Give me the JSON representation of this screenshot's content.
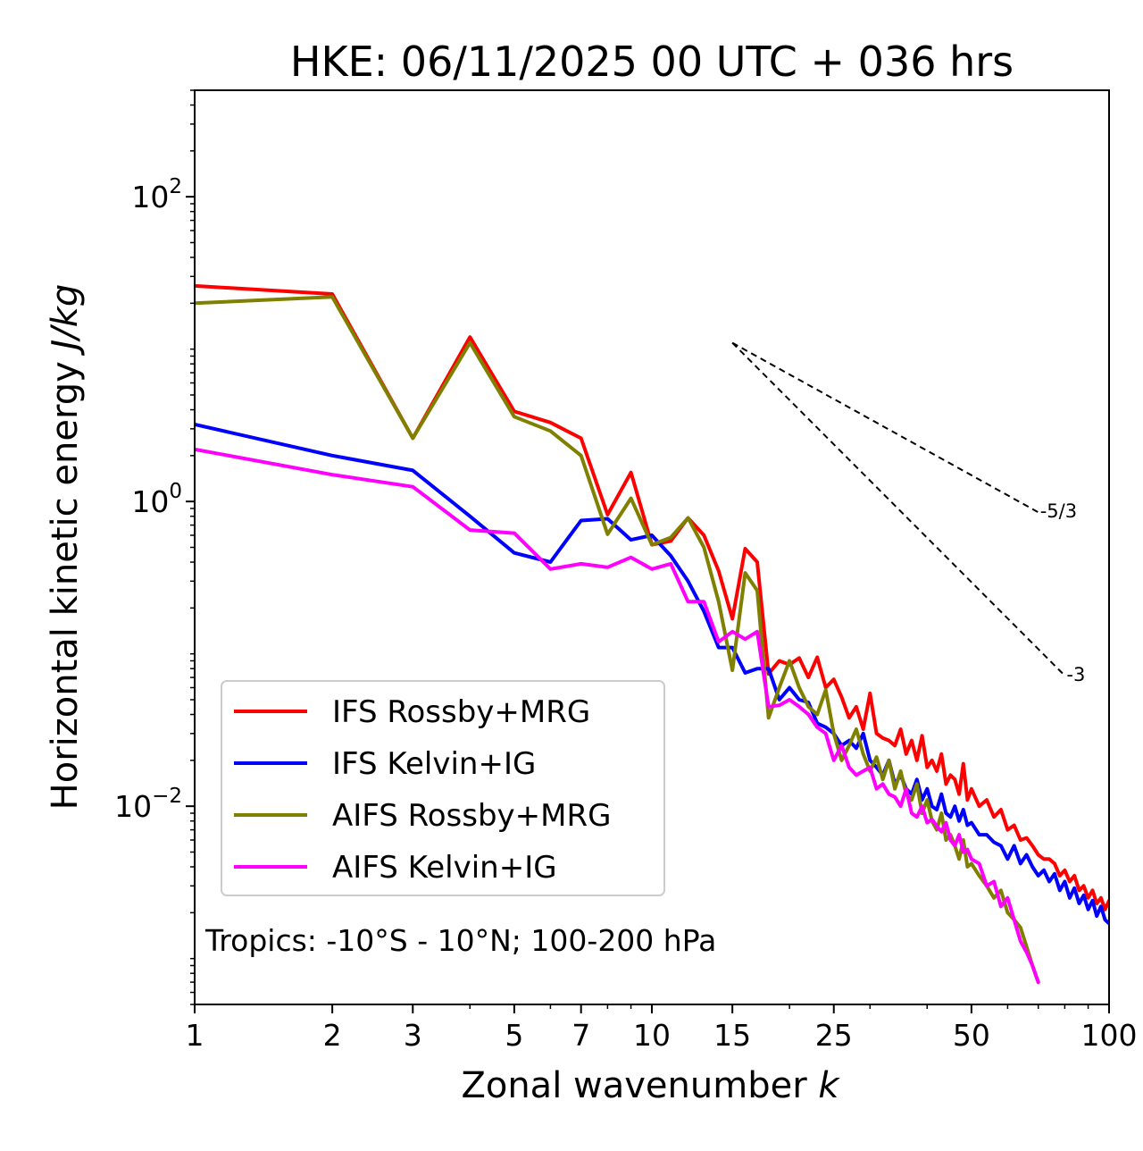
{
  "chart_data": {
    "type": "line",
    "title": "HKE: 06/11/2025 00 UTC + 036 hrs",
    "xlabel": "Zonal wavenumber",
    "xlabel_var": "k",
    "ylabel": "Horizontal kinetic energy",
    "ylabel_units": "J/kg",
    "xscale": "log",
    "yscale": "log",
    "xlim": [
      1,
      100
    ],
    "ylim": [
      0.0005,
      500
    ],
    "xticks": [
      1,
      2,
      3,
      5,
      7,
      10,
      15,
      25,
      50,
      100
    ],
    "xtick_labels": [
      "1",
      "2",
      "3",
      "5",
      "7",
      "10",
      "15",
      "25",
      "50",
      "100"
    ],
    "yticks": [
      {
        "value": 100,
        "base": "10",
        "exp": "2"
      },
      {
        "value": 1,
        "base": "10",
        "exp": "0"
      },
      {
        "value": 0.01,
        "base": "10",
        "exp": "−2"
      }
    ],
    "annotation": "Tropics: -10°S - 10°N; 100-200 hPa",
    "legend_location": "lower-left",
    "reference_lines": [
      {
        "label": "-5/3",
        "slope": -1.6667,
        "x": [
          15,
          70
        ],
        "y": [
          11,
          0.85
        ]
      },
      {
        "label": "-3",
        "slope": -3,
        "x": [
          15,
          80
        ],
        "y": [
          11,
          0.072
        ]
      }
    ],
    "series": [
      {
        "name": "IFS Rossby+MRG",
        "color": "#ff0000",
        "x": [
          1,
          2,
          3,
          4,
          5,
          6,
          7,
          8,
          9,
          10,
          11,
          12,
          13,
          14,
          15,
          16,
          17,
          18,
          19,
          20,
          21,
          22,
          23,
          24,
          25,
          26,
          27,
          28,
          29,
          30,
          31,
          32,
          33,
          34,
          35,
          36,
          37,
          38,
          39,
          40,
          41,
          42,
          43,
          44,
          45,
          46,
          47,
          48,
          49,
          50,
          52,
          54,
          56,
          58,
          60,
          62,
          64,
          66,
          68,
          70,
          72,
          74,
          76,
          78,
          80,
          82,
          84,
          86,
          88,
          90,
          92,
          94,
          96,
          98,
          100
        ],
        "values": [
          26,
          23,
          2.6,
          12,
          3.9,
          3.3,
          2.6,
          0.82,
          1.55,
          0.52,
          0.55,
          0.78,
          0.6,
          0.35,
          0.17,
          0.49,
          0.4,
          0.074,
          0.09,
          0.085,
          0.094,
          0.07,
          0.095,
          0.06,
          0.068,
          0.052,
          0.038,
          0.045,
          0.032,
          0.055,
          0.03,
          0.028,
          0.027,
          0.025,
          0.032,
          0.022,
          0.027,
          0.02,
          0.029,
          0.018,
          0.02,
          0.017,
          0.022,
          0.014,
          0.016,
          0.015,
          0.012,
          0.019,
          0.011,
          0.013,
          0.01,
          0.011,
          0.0085,
          0.0095,
          0.007,
          0.0075,
          0.006,
          0.0062,
          0.0055,
          0.0048,
          0.0045,
          0.0045,
          0.0042,
          0.0035,
          0.0038,
          0.0032,
          0.0035,
          0.0028,
          0.003,
          0.0025,
          0.0028,
          0.0023,
          0.0025,
          0.0021,
          0.0024
        ]
      },
      {
        "name": "IFS Kelvin+IG",
        "color": "#0000ff",
        "x": [
          1,
          2,
          3,
          4,
          5,
          6,
          7,
          8,
          9,
          10,
          11,
          12,
          13,
          14,
          15,
          16,
          17,
          18,
          19,
          20,
          21,
          22,
          23,
          24,
          25,
          26,
          27,
          28,
          29,
          30,
          31,
          32,
          33,
          34,
          35,
          36,
          37,
          38,
          39,
          40,
          41,
          42,
          43,
          44,
          45,
          46,
          47,
          48,
          49,
          50,
          52,
          54,
          56,
          58,
          60,
          62,
          64,
          66,
          68,
          70,
          72,
          74,
          76,
          78,
          80,
          82,
          84,
          86,
          88,
          90,
          92,
          94,
          96,
          98,
          100
        ],
        "values": [
          3.2,
          2.0,
          1.6,
          0.8,
          0.46,
          0.4,
          0.75,
          0.77,
          0.56,
          0.6,
          0.44,
          0.3,
          0.19,
          0.11,
          0.11,
          0.075,
          0.08,
          0.08,
          0.05,
          0.06,
          0.05,
          0.048,
          0.035,
          0.033,
          0.03,
          0.025,
          0.027,
          0.024,
          0.03,
          0.02,
          0.018,
          0.016,
          0.02,
          0.014,
          0.016,
          0.013,
          0.012,
          0.015,
          0.011,
          0.013,
          0.01,
          0.0095,
          0.012,
          0.009,
          0.0085,
          0.01,
          0.008,
          0.0095,
          0.0075,
          0.0078,
          0.0065,
          0.0065,
          0.0058,
          0.0055,
          0.0045,
          0.0055,
          0.0042,
          0.0048,
          0.004,
          0.0035,
          0.0038,
          0.0032,
          0.0036,
          0.0028,
          0.0032,
          0.0025,
          0.0029,
          0.0023,
          0.0026,
          0.0021,
          0.0024,
          0.0019,
          0.0022,
          0.0018,
          0.0017
        ]
      },
      {
        "name": "AIFS Rossby+MRG",
        "color": "#808000",
        "x": [
          1,
          2,
          3,
          4,
          5,
          6,
          7,
          8,
          9,
          10,
          11,
          12,
          13,
          14,
          15,
          16,
          17,
          18,
          19,
          20,
          21,
          22,
          23,
          24,
          25,
          26,
          27,
          28,
          29,
          30,
          31,
          32,
          33,
          34,
          35,
          36,
          37,
          38,
          39,
          40,
          41,
          42,
          43,
          44,
          45,
          46,
          47,
          48,
          49,
          50,
          52,
          54,
          56,
          58,
          60,
          62,
          64,
          66,
          68,
          70
        ],
        "values": [
          20,
          22,
          2.6,
          11,
          3.6,
          2.9,
          2.0,
          0.61,
          1.05,
          0.52,
          0.58,
          0.78,
          0.5,
          0.22,
          0.078,
          0.34,
          0.26,
          0.038,
          0.06,
          0.09,
          0.06,
          0.045,
          0.04,
          0.058,
          0.03,
          0.02,
          0.025,
          0.032,
          0.022,
          0.017,
          0.021,
          0.015,
          0.02,
          0.013,
          0.017,
          0.012,
          0.011,
          0.014,
          0.009,
          0.011,
          0.008,
          0.007,
          0.009,
          0.006,
          0.0065,
          0.0055,
          0.0045,
          0.006,
          0.004,
          0.0042,
          0.0035,
          0.003,
          0.0025,
          0.0028,
          0.002,
          0.0018,
          0.0016,
          0.0012,
          0.0009,
          0.0007
        ]
      },
      {
        "name": "AIFS Kelvin+IG",
        "color": "#ff00ff",
        "x": [
          1,
          2,
          3,
          4,
          5,
          6,
          7,
          8,
          9,
          10,
          11,
          12,
          13,
          14,
          15,
          16,
          17,
          18,
          19,
          20,
          21,
          22,
          23,
          24,
          25,
          26,
          27,
          28,
          29,
          30,
          31,
          32,
          33,
          34,
          35,
          36,
          37,
          38,
          39,
          40,
          41,
          42,
          43,
          44,
          45,
          46,
          47,
          48,
          49,
          50,
          52,
          54,
          56,
          58,
          60,
          62,
          64,
          66,
          68,
          70
        ],
        "values": [
          2.2,
          1.5,
          1.25,
          0.65,
          0.62,
          0.36,
          0.39,
          0.37,
          0.43,
          0.36,
          0.39,
          0.22,
          0.22,
          0.12,
          0.14,
          0.125,
          0.14,
          0.045,
          0.046,
          0.05,
          0.045,
          0.04,
          0.033,
          0.03,
          0.02,
          0.025,
          0.018,
          0.016,
          0.017,
          0.018,
          0.013,
          0.014,
          0.012,
          0.0115,
          0.01,
          0.013,
          0.009,
          0.0085,
          0.01,
          0.0078,
          0.0082,
          0.0074,
          0.0068,
          0.0078,
          0.006,
          0.0055,
          0.0065,
          0.005,
          0.0052,
          0.0045,
          0.0042,
          0.003,
          0.0032,
          0.0022,
          0.0025,
          0.0018,
          0.0013,
          0.0011,
          0.0009,
          0.0007
        ]
      }
    ]
  }
}
